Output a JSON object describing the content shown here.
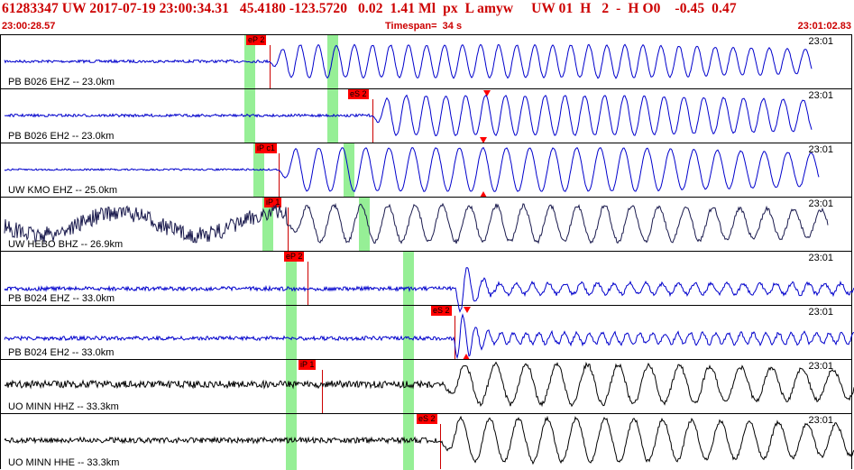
{
  "header": {
    "title": "61283347 UW 2017-07-19 23:00:34.31   45.4180 -123.5720   0.02  1.41 Ml  px  L amyw     UW 01  H   2  -  H O0    -0.45  0.47",
    "start_time": "23:00:28.57",
    "timespan": "Timespan=  34 s",
    "end_time": "23:01:02.83"
  },
  "colors": {
    "header_text": "#cc0000",
    "pick": "#ff0000",
    "window": "#90ee90",
    "trace_blue": "#0000cc",
    "trace_dark": "#1a1a4d",
    "trace_black": "#000000"
  },
  "panels": [
    {
      "station": "PB B026 EHZ -- 23.0km",
      "time": "23:01",
      "trace_color": "#0000cc",
      "pick_label": "eP 2"
    },
    {
      "station": "PB B026 EH2 -- 23.0km",
      "time": "23:01",
      "trace_color": "#0000cc",
      "pick_label": "eS 2"
    },
    {
      "station": "UW KMO EHZ -- 25.0km",
      "time": "23:01",
      "trace_color": "#0000cc",
      "pick_label": "iP c1"
    },
    {
      "station": "UW HEBO BHZ -- 26.9km",
      "time": "23:01",
      "trace_color": "#1a1a4d",
      "pick_label": "iP 1"
    },
    {
      "station": "PB B024 EHZ -- 33.0km",
      "time": "23:01",
      "trace_color": "#0000cc",
      "pick_label": "eP 2"
    },
    {
      "station": "PB B024 EH2 -- 33.0km",
      "time": "23:01",
      "trace_color": "#0000cc",
      "pick_label": "eS 2"
    },
    {
      "station": "UO MINN HHZ -- 33.3km",
      "time": "23:01",
      "trace_color": "#000000",
      "pick_label": "iP 1"
    },
    {
      "station": "UO MINN HHE -- 33.3km",
      "time": "23:01",
      "trace_color": "#000000",
      "pick_label": "eS 2"
    }
  ]
}
